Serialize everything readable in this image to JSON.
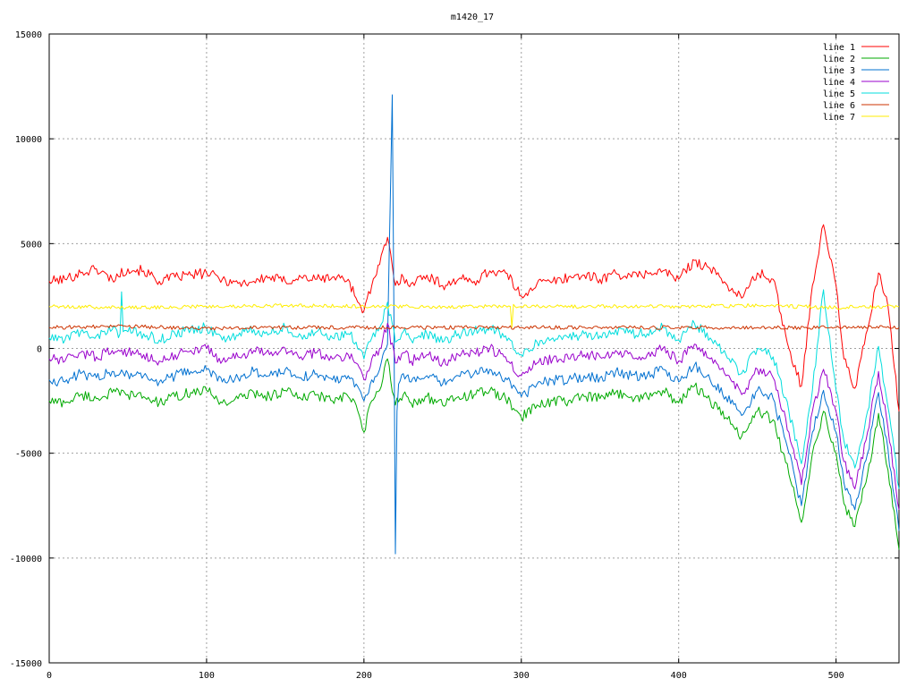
{
  "chart_data": {
    "type": "line",
    "title": "m1420_17",
    "xlabel": "",
    "ylabel": "",
    "xlim": [
      0,
      540
    ],
    "ylim": [
      -15000,
      15000
    ],
    "x_ticks": [
      0,
      100,
      200,
      300,
      400,
      500
    ],
    "y_ticks": [
      -15000,
      -10000,
      -5000,
      0,
      5000,
      10000,
      15000
    ],
    "grid": true,
    "legend_position": "top-right",
    "series": [
      {
        "name": "line 1",
        "color": "#ff0000",
        "x": [
          0,
          10,
          20,
          30,
          40,
          50,
          60,
          70,
          80,
          90,
          100,
          110,
          120,
          130,
          140,
          150,
          160,
          170,
          180,
          190,
          195,
          200,
          205,
          210,
          215,
          220,
          225,
          230,
          240,
          250,
          260,
          270,
          280,
          290,
          300,
          310,
          320,
          330,
          340,
          350,
          360,
          370,
          380,
          390,
          400,
          410,
          420,
          430,
          440,
          450,
          460,
          470,
          478,
          485,
          492,
          500,
          505,
          512,
          520,
          527,
          533,
          540
        ],
        "values": [
          3200,
          3300,
          3600,
          3800,
          3300,
          3800,
          3700,
          3200,
          3400,
          3500,
          3600,
          3300,
          3100,
          3200,
          3400,
          3200,
          3400,
          3300,
          3400,
          3300,
          2400,
          1800,
          3000,
          4000,
          5300,
          3000,
          3400,
          3100,
          3500,
          3000,
          3300,
          3200,
          3700,
          3600,
          2500,
          3100,
          3200,
          3400,
          3500,
          3300,
          3600,
          3400,
          3600,
          3700,
          3300,
          4200,
          3800,
          3100,
          2400,
          3600,
          3300,
          0,
          -1800,
          3000,
          5900,
          3000,
          -500,
          -1900,
          900,
          3600,
          2000,
          -3000
        ]
      },
      {
        "name": "line 2",
        "color": "#00aa00",
        "x": [
          0,
          10,
          20,
          30,
          40,
          50,
          60,
          70,
          80,
          90,
          100,
          110,
          120,
          130,
          140,
          150,
          160,
          170,
          180,
          190,
          195,
          200,
          205,
          210,
          215,
          220,
          225,
          230,
          240,
          250,
          260,
          270,
          280,
          290,
          300,
          310,
          320,
          330,
          340,
          350,
          360,
          370,
          380,
          390,
          400,
          410,
          420,
          430,
          440,
          450,
          460,
          470,
          478,
          485,
          492,
          500,
          505,
          512,
          520,
          527,
          533,
          540
        ],
        "values": [
          -2500,
          -2600,
          -2200,
          -2400,
          -2100,
          -2200,
          -2300,
          -2600,
          -2300,
          -2100,
          -2000,
          -2600,
          -2400,
          -2100,
          -2300,
          -2000,
          -2400,
          -2200,
          -2500,
          -2300,
          -2700,
          -4000,
          -2500,
          -2000,
          -500,
          -2700,
          -2200,
          -2600,
          -2300,
          -2700,
          -2300,
          -2200,
          -2000,
          -2400,
          -3300,
          -2700,
          -2500,
          -2500,
          -2300,
          -2400,
          -2100,
          -2300,
          -2300,
          -2000,
          -2600,
          -1800,
          -2500,
          -3300,
          -4200,
          -3000,
          -3400,
          -6000,
          -8300,
          -5000,
          -3000,
          -5000,
          -7400,
          -8500,
          -6000,
          -3100,
          -5800,
          -9600
        ]
      },
      {
        "name": "line 3",
        "color": "#0070d0",
        "x": [
          0,
          10,
          20,
          30,
          40,
          50,
          60,
          70,
          80,
          90,
          100,
          110,
          120,
          130,
          140,
          150,
          160,
          170,
          180,
          190,
          195,
          200,
          205,
          210,
          215,
          218,
          219,
          220,
          221,
          222,
          225,
          230,
          240,
          250,
          260,
          270,
          280,
          290,
          300,
          310,
          320,
          330,
          340,
          350,
          360,
          370,
          380,
          390,
          400,
          410,
          420,
          430,
          440,
          450,
          460,
          470,
          478,
          485,
          492,
          500,
          505,
          512,
          520,
          527,
          533,
          540
        ],
        "values": [
          -1500,
          -1600,
          -1200,
          -1400,
          -1100,
          -1200,
          -1300,
          -1600,
          -1300,
          -1100,
          -1000,
          -1600,
          -1400,
          -1100,
          -1300,
          -1000,
          -1400,
          -1200,
          -1500,
          -1300,
          -1700,
          -2500,
          -1500,
          -1000,
          200,
          12100,
          2000,
          -9800,
          -3000,
          -1700,
          -1200,
          -1600,
          -1300,
          -1700,
          -1300,
          -1200,
          -1000,
          -1400,
          -2300,
          -1700,
          -1500,
          -1500,
          -1300,
          -1400,
          -1100,
          -1300,
          -1300,
          -1000,
          -1600,
          -800,
          -1500,
          -2300,
          -3200,
          -2000,
          -2400,
          -5000,
          -7500,
          -4000,
          -2000,
          -4000,
          -6400,
          -7700,
          -5000,
          -2100,
          -4800,
          -8700
        ]
      },
      {
        "name": "line 4",
        "color": "#9900cc",
        "x": [
          0,
          10,
          20,
          30,
          40,
          50,
          60,
          70,
          80,
          90,
          100,
          110,
          120,
          130,
          140,
          150,
          160,
          170,
          180,
          190,
          195,
          200,
          205,
          210,
          215,
          220,
          225,
          230,
          240,
          250,
          260,
          270,
          280,
          290,
          300,
          310,
          320,
          330,
          340,
          350,
          360,
          370,
          380,
          390,
          400,
          410,
          420,
          430,
          440,
          450,
          460,
          470,
          478,
          485,
          492,
          500,
          505,
          512,
          520,
          527,
          533,
          540
        ],
        "values": [
          -500,
          -600,
          -200,
          -400,
          -100,
          -200,
          -300,
          -600,
          -300,
          -100,
          0,
          -600,
          -400,
          -100,
          -300,
          0,
          -400,
          -200,
          -500,
          -300,
          -700,
          -1500,
          -500,
          0,
          1200,
          -700,
          -200,
          -600,
          -300,
          -700,
          -300,
          -200,
          0,
          -400,
          -1300,
          -700,
          -500,
          -500,
          -300,
          -400,
          -100,
          -300,
          -300,
          0,
          -600,
          200,
          -500,
          -1300,
          -2200,
          -1000,
          -1400,
          -4000,
          -6500,
          -3000,
          -1000,
          -3000,
          -5400,
          -6700,
          -4000,
          -1100,
          -3800,
          -7700
        ]
      },
      {
        "name": "line 5",
        "color": "#00dddd",
        "x": [
          0,
          10,
          20,
          30,
          40,
          45,
          46,
          47,
          50,
          60,
          70,
          80,
          90,
          100,
          110,
          120,
          130,
          140,
          150,
          160,
          170,
          180,
          190,
          195,
          200,
          205,
          210,
          215,
          220,
          225,
          230,
          240,
          250,
          260,
          270,
          280,
          290,
          300,
          310,
          320,
          330,
          340,
          350,
          360,
          370,
          380,
          390,
          400,
          410,
          420,
          430,
          440,
          450,
          460,
          470,
          478,
          485,
          492,
          500,
          505,
          512,
          520,
          527,
          533,
          540
        ],
        "values": [
          500,
          400,
          800,
          600,
          900,
          700,
          2700,
          800,
          800,
          700,
          400,
          700,
          900,
          1000,
          400,
          600,
          900,
          700,
          1000,
          600,
          800,
          500,
          700,
          300,
          -500,
          500,
          1000,
          2200,
          300,
          800,
          400,
          700,
          300,
          700,
          800,
          1000,
          600,
          -300,
          300,
          500,
          500,
          700,
          600,
          900,
          700,
          700,
          1000,
          400,
          1200,
          500,
          -300,
          -1200,
          0,
          -400,
          -3000,
          -5500,
          -2000,
          2800,
          -2000,
          -4400,
          -5700,
          -3000,
          100,
          -2800,
          -6700
        ]
      },
      {
        "name": "line 6",
        "color": "#cc3300",
        "x": [
          0,
          50,
          100,
          150,
          200,
          250,
          300,
          350,
          400,
          450,
          500,
          540
        ],
        "values": [
          1000,
          1050,
          950,
          1000,
          1000,
          1000,
          1000,
          1000,
          1000,
          1000,
          1000,
          1000
        ]
      },
      {
        "name": "line 7",
        "color": "#ffee00",
        "x": [
          0,
          50,
          100,
          150,
          200,
          250,
          293,
          294,
          295,
          296,
          300,
          350,
          400,
          450,
          500,
          540
        ],
        "values": [
          2000,
          1950,
          2000,
          2050,
          2000,
          2000,
          2000,
          1000,
          2100,
          2000,
          2000,
          2000,
          2000,
          2050,
          1950,
          2000
        ]
      }
    ]
  }
}
